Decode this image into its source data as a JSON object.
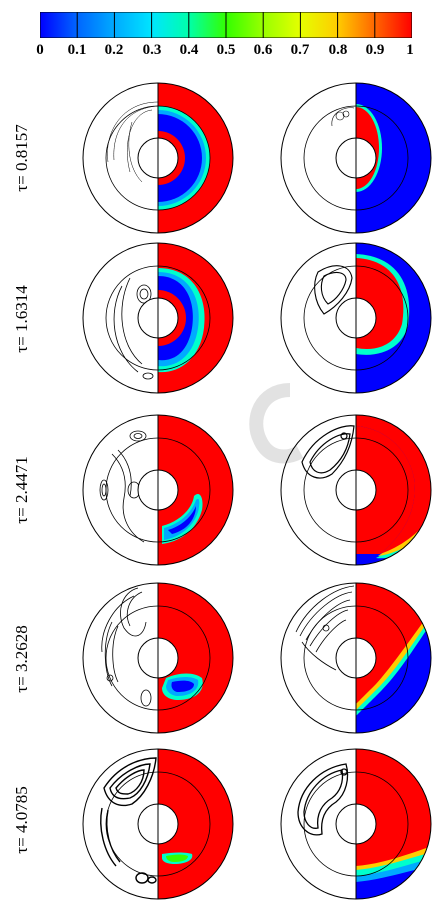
{
  "colorbar": {
    "ticks": [
      "0",
      "0.1",
      "0.2",
      "0.3",
      "0.4",
      "0.5",
      "0.6",
      "0.7",
      "0.8",
      "0.9",
      "1"
    ],
    "colors": [
      "#0000ff",
      "#0066ff",
      "#00aaff",
      "#00e5ff",
      "#00ffaa",
      "#33ff00",
      "#99ff00",
      "#e5ff00",
      "#ffcc00",
      "#ff6600",
      "#ff0000"
    ]
  },
  "rows": [
    {
      "tau": "τ= 0.8157"
    },
    {
      "tau": "τ= 1.6314"
    },
    {
      "tau": "τ= 2.4471"
    },
    {
      "tau": "τ= 3.2628"
    },
    {
      "tau": "τ= 4.0785"
    }
  ],
  "field_colors": {
    "melted": "#ff0000",
    "solid": "#0000ff",
    "interface": "#00ffcc"
  }
}
